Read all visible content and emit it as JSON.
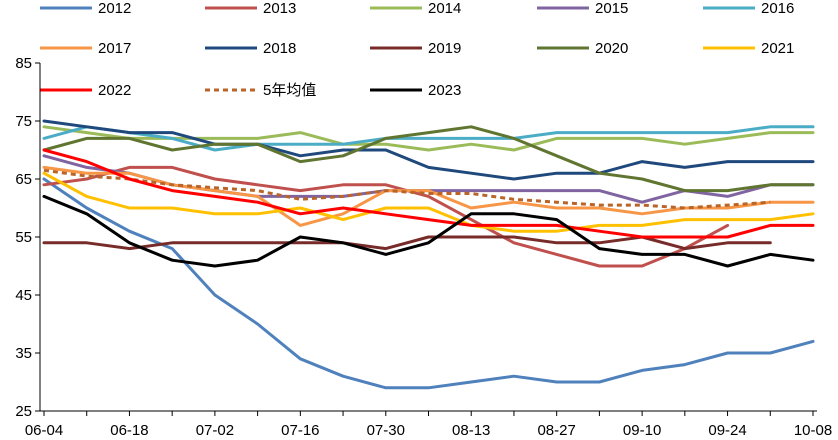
{
  "chart_data": {
    "type": "line",
    "title": "",
    "xlabel": "",
    "ylabel": "",
    "ylim": [
      25,
      85
    ],
    "yticks": [
      25,
      35,
      45,
      55,
      65,
      75,
      85
    ],
    "x": [
      "06-04",
      "06-11",
      "06-18",
      "06-25",
      "07-02",
      "07-09",
      "07-16",
      "07-23",
      "07-30",
      "08-06",
      "08-13",
      "08-20",
      "08-27",
      "09-03",
      "09-10",
      "09-17",
      "09-24",
      "10-01",
      "10-08"
    ],
    "xtick_labels": [
      "06-04",
      "06-18",
      "07-02",
      "07-16",
      "07-30",
      "08-13",
      "08-27",
      "09-10",
      "09-24",
      "10-08"
    ],
    "grid": false,
    "legend_position": "top",
    "series": [
      {
        "name": "2012",
        "color": "#4F81BD",
        "dash": "solid",
        "values": [
          65,
          60,
          56,
          53,
          45,
          40,
          34,
          31,
          29,
          29,
          30,
          31,
          30,
          30,
          32,
          33,
          35,
          35,
          37
        ]
      },
      {
        "name": "2013",
        "color": "#C0504D",
        "dash": "solid",
        "values": [
          64,
          65,
          67,
          67,
          65,
          64,
          63,
          64,
          64,
          62,
          58,
          54,
          52,
          50,
          50,
          53,
          57,
          null,
          null
        ]
      },
      {
        "name": "2014",
        "color": "#9BBB59",
        "dash": "solid",
        "values": [
          74,
          73,
          72,
          72,
          72,
          72,
          73,
          71,
          71,
          70,
          71,
          70,
          72,
          72,
          72,
          71,
          72,
          73,
          73
        ]
      },
      {
        "name": "2015",
        "color": "#8064A2",
        "dash": "solid",
        "values": [
          69,
          67,
          66,
          64,
          63,
          62,
          62,
          62,
          63,
          63,
          63,
          63,
          63,
          63,
          61,
          63,
          62,
          64,
          64
        ]
      },
      {
        "name": "2016",
        "color": "#4BACC6",
        "dash": "solid",
        "values": [
          72,
          74,
          73,
          72,
          70,
          71,
          71,
          71,
          72,
          72,
          72,
          72,
          73,
          73,
          73,
          73,
          73,
          74,
          74
        ]
      },
      {
        "name": "2017",
        "color": "#F79646",
        "dash": "solid",
        "values": [
          67,
          66,
          66,
          64,
          63,
          62,
          57,
          59,
          63,
          63,
          60,
          61,
          60,
          60,
          59,
          60,
          60,
          61,
          61
        ]
      },
      {
        "name": "2018",
        "color": "#1F497D",
        "dash": "solid",
        "values": [
          75,
          74,
          73,
          73,
          71,
          71,
          69,
          70,
          70,
          67,
          66,
          65,
          66,
          66,
          68,
          67,
          68,
          68,
          68
        ]
      },
      {
        "name": "2019",
        "color": "#772C2A",
        "dash": "solid",
        "values": [
          54,
          54,
          53,
          54,
          54,
          54,
          54,
          54,
          53,
          55,
          55,
          55,
          54,
          54,
          55,
          53,
          54,
          54,
          null
        ]
      },
      {
        "name": "2020",
        "color": "#5F7530",
        "dash": "solid",
        "values": [
          70,
          72,
          72,
          70,
          71,
          71,
          68,
          69,
          72,
          73,
          74,
          72,
          69,
          66,
          65,
          63,
          63,
          64,
          64
        ]
      },
      {
        "name": "2021",
        "color": "#FFC000",
        "dash": "solid",
        "values": [
          66,
          62,
          60,
          60,
          59,
          59,
          60,
          58,
          60,
          60,
          57,
          56,
          56,
          57,
          57,
          58,
          58,
          58,
          59
        ]
      },
      {
        "name": "2022",
        "color": "#FF0000",
        "dash": "solid",
        "values": [
          70,
          68,
          65,
          63,
          62,
          61,
          59,
          60,
          59,
          58,
          57,
          57,
          57,
          56,
          55,
          55,
          55,
          57,
          57
        ]
      },
      {
        "name": "5年均值",
        "color": "#B9652A",
        "dash": "dotted",
        "values": [
          66.5,
          65.5,
          65,
          64,
          63.5,
          63,
          61.5,
          62,
          63,
          62.5,
          62.5,
          61.5,
          61,
          60.5,
          60.5,
          60,
          60.5,
          61,
          null
        ]
      },
      {
        "name": "2023",
        "color": "#000000",
        "dash": "solid",
        "values": [
          62,
          59,
          54,
          51,
          50,
          51,
          55,
          54,
          52,
          54,
          59,
          59,
          58,
          53,
          52,
          52,
          50,
          52,
          51
        ]
      }
    ]
  }
}
